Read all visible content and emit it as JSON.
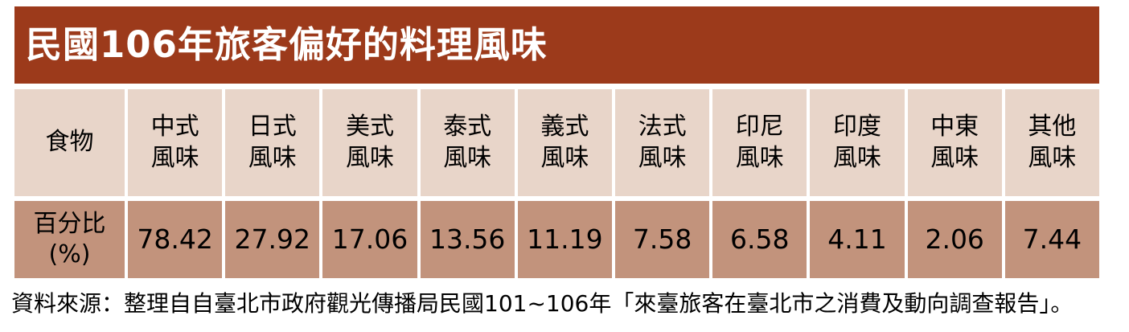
{
  "title": "民國106年旅客偏好的料理風味",
  "table": {
    "corner_label": "食物",
    "row_label_line1": "百分比",
    "row_label_line2": "(%)",
    "columns": [
      {
        "line1": "中式",
        "line2": "風味"
      },
      {
        "line1": "日式",
        "line2": "風味"
      },
      {
        "line1": "美式",
        "line2": "風味"
      },
      {
        "line1": "泰式",
        "line2": "風味"
      },
      {
        "line1": "義式",
        "line2": "風味"
      },
      {
        "line1": "法式",
        "line2": "風味"
      },
      {
        "line1": "印尼",
        "line2": "風味"
      },
      {
        "line1": "印度",
        "line2": "風味"
      },
      {
        "line1": "中東",
        "line2": "風味"
      },
      {
        "line1": "其他",
        "line2": "風味"
      }
    ],
    "values": [
      "78.42",
      "27.92",
      "17.06",
      "13.56",
      "11.19",
      "7.58",
      "6.58",
      "4.11",
      "2.06",
      "7.44"
    ]
  },
  "source_note": "資料來源：整理自自臺北市政府觀光傳播局民國101~106年「來臺旅客在臺北市之消費及動向調查報告」。",
  "colors": {
    "title_bar_bg": "#9C3A1B",
    "title_text": "#FFFFFF",
    "header_bg": "#E8D5C9",
    "value_bg": "#C2937C",
    "gridline": "#FFFFFF",
    "body_text": "#000000"
  },
  "chart_data": {
    "type": "table",
    "title": "民國106年旅客偏好的料理風味",
    "row_header": "食物",
    "row_label": "百分比(%)",
    "categories": [
      "中式風味",
      "日式風味",
      "美式風味",
      "泰式風味",
      "義式風味",
      "法式風味",
      "印尼風味",
      "印度風味",
      "中東風味",
      "其他風味"
    ],
    "values": [
      78.42,
      27.92,
      17.06,
      13.56,
      11.19,
      7.58,
      6.58,
      4.11,
      2.06,
      7.44
    ],
    "unit": "percent",
    "source": "資料來源：整理自自臺北市政府觀光傳播局民國101~106年「來臺旅客在臺北市之消費及動向調查報告」。"
  }
}
